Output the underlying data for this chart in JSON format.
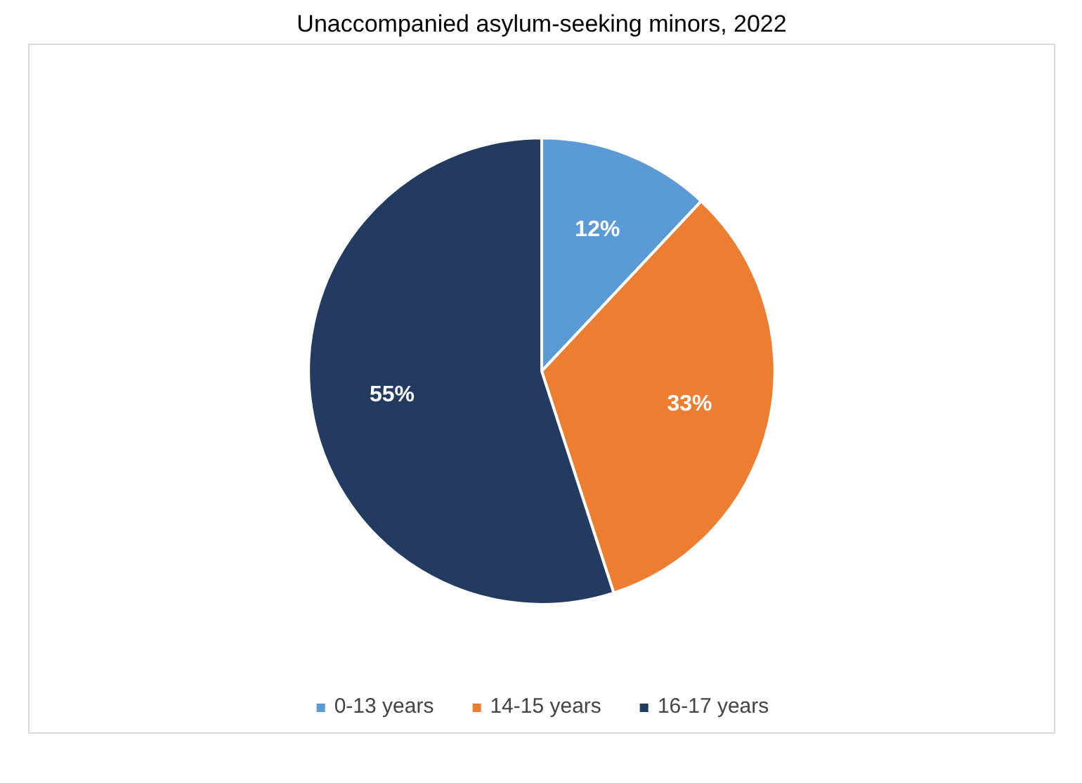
{
  "chart_data": {
    "type": "pie",
    "title": "Unaccompanied asylum-seeking minors, 2022",
    "categories": [
      "0-13 years",
      "14-15 years",
      "16-17 years"
    ],
    "values": [
      12,
      33,
      55
    ],
    "colors": [
      "#5b9bd5",
      "#ed7d31",
      "#243b61"
    ],
    "value_labels": [
      "12%",
      "33%",
      "55%"
    ],
    "legend": "bottom"
  }
}
